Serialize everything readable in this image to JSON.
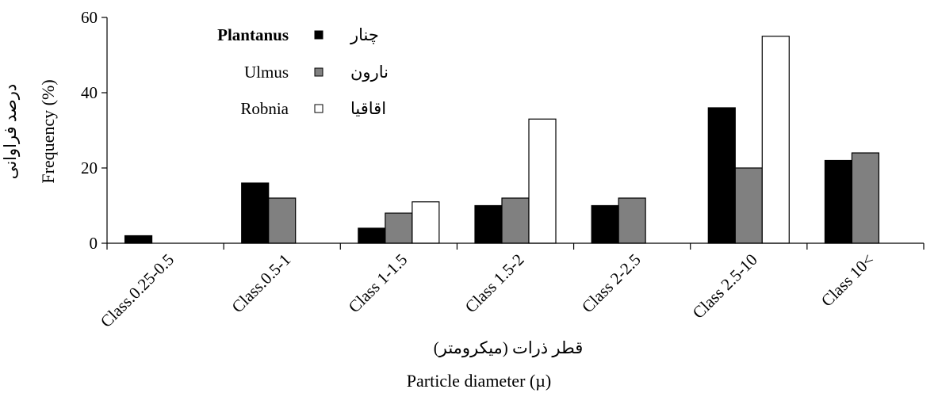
{
  "chart_data": {
    "type": "bar",
    "title": "",
    "xlabel": "Particle diameter (µ)",
    "xlabel_fa": "قطر ذرات (میکرومتر)",
    "ylabel": "Frequency (%)",
    "ylabel_fa": "درصد فراوانی",
    "ylim": [
      0,
      60
    ],
    "yticks": [
      "0",
      "20",
      "40",
      "60"
    ],
    "grid": false,
    "legend_position": "top-left",
    "categories": [
      "Class.0.25-0.5",
      "Class.0.5-1",
      "Class 1-1.5",
      "Class 1.5-2",
      "Class 2-2.5",
      "Class 2.5-10",
      "Class 10<"
    ],
    "series": [
      {
        "name": "Plantanus",
        "name_fa": "چنار",
        "color": "#000000",
        "values": [
          2,
          16,
          4,
          10,
          10,
          36,
          22
        ]
      },
      {
        "name": "Ulmus",
        "name_fa": "نارون",
        "color": "#808080",
        "values": [
          0,
          12,
          8,
          12,
          12,
          20,
          24
        ]
      },
      {
        "name": "Robnia",
        "name_fa": "اقاقیا",
        "color": "#ffffff",
        "values": [
          0,
          0,
          11,
          33,
          0,
          55,
          0
        ]
      }
    ]
  }
}
